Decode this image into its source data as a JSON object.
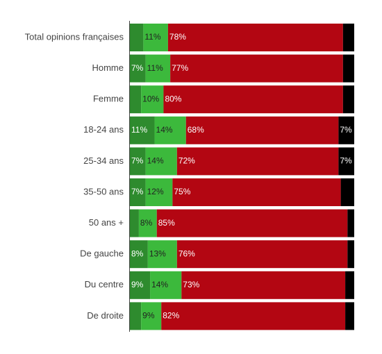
{
  "chart_data": {
    "type": "bar",
    "orientation": "horizontal",
    "stacked": true,
    "categories": [
      "Total opinions françaises",
      "Homme",
      "Femme",
      "18-24 ans",
      "25-34 ans",
      "35-50 ans",
      "50 ans +",
      "De gauche",
      "Du centre",
      "De droite"
    ],
    "series": [
      {
        "color": "#2e8b2e",
        "label_color": "#ffffff",
        "values": [
          6,
          7,
          5,
          11,
          7,
          7,
          4,
          8,
          9,
          5
        ],
        "labels": [
          "",
          "7%",
          "",
          "11%",
          "7%",
          "7%",
          "",
          "8%",
          "9%",
          ""
        ]
      },
      {
        "color": "#3cb93c",
        "label_color": "#222222",
        "values": [
          11,
          11,
          10,
          14,
          14,
          12,
          8,
          13,
          14,
          9
        ],
        "labels": [
          "11%",
          "11%",
          "10%",
          "14%",
          "14%",
          "12%",
          "8%",
          "13%",
          "14%",
          "9%"
        ]
      },
      {
        "color": "#b30612",
        "label_color": "#ffffff",
        "values": [
          78,
          77,
          80,
          68,
          72,
          75,
          85,
          76,
          73,
          82
        ],
        "labels": [
          "78%",
          "77%",
          "80%",
          "68%",
          "72%",
          "75%",
          "85%",
          "76%",
          "73%",
          "82%"
        ]
      },
      {
        "color": "#000000",
        "label_color": "#ffffff",
        "values": [
          5,
          5,
          5,
          7,
          7,
          6,
          3,
          3,
          4,
          4
        ],
        "labels": [
          "",
          "",
          "",
          "7%",
          "7%",
          "",
          "",
          "",
          "",
          ""
        ]
      }
    ],
    "xlim": [
      0,
      100
    ],
    "grid": false,
    "legend": "none"
  }
}
